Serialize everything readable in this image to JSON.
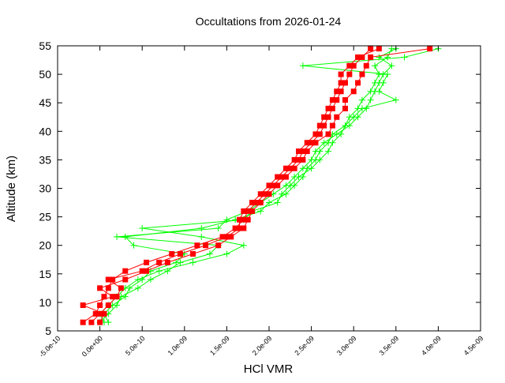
{
  "chart_data": {
    "type": "line",
    "title": "Occultations from 2026-01-24",
    "xlabel": "HCl VMR",
    "ylabel": "Altitude (km)",
    "xlim": [
      -5e-10,
      4.5e-09
    ],
    "ylim": [
      5,
      55
    ],
    "xticks": [
      "-5.0e-10",
      "0.0e+00",
      "5.0e-10",
      "1.0e-09",
      "1.5e-09",
      "2.0e-09",
      "2.5e-09",
      "3.0e-09",
      "3.5e-09",
      "4.0e-09",
      "4.5e-09"
    ],
    "xtick_values": [
      -5e-10,
      0,
      5e-10,
      1e-09,
      1.5e-09,
      2e-09,
      2.5e-09,
      3e-09,
      3.5e-09,
      4e-09,
      4.5e-09
    ],
    "yticks": [
      5,
      10,
      15,
      20,
      25,
      30,
      35,
      40,
      45,
      50,
      55
    ],
    "grid": false,
    "altitudes": [
      6.5,
      8,
      9.5,
      11,
      12.5,
      14,
      15.5,
      17,
      18.5,
      20,
      21.5,
      23,
      24.5,
      26,
      27.5,
      29,
      30.5,
      32,
      33.5,
      35,
      36.5,
      38,
      39.5,
      41,
      42.5,
      44,
      45.5,
      47,
      48.5,
      50,
      51.5,
      53,
      54.5
    ],
    "series": [
      {
        "color": "#00ff00",
        "marker": "plus",
        "values": [
          1e-10,
          5e-11,
          1.5e-10,
          3e-10,
          3.5e-10,
          5e-10,
          6e-10,
          9e-10,
          1e-09,
          4e-10,
          3e-10,
          1.2e-09,
          1.6e-09,
          1.9e-09,
          2e-09,
          2.2e-09,
          2.3e-09,
          2.4e-09,
          2.45e-09,
          2.55e-09,
          2.6e-09,
          2.7e-09,
          2.75e-09,
          2.9e-09,
          3e-09,
          3.1e-09,
          3.5e-09,
          3.3e-09,
          3.35e-09,
          3.4e-09,
          2.4e-09,
          3.6e-09,
          4e-09
        ]
      },
      {
        "color": "#00ff00",
        "marker": "plus",
        "values": [
          0.0,
          1e-10,
          2e-10,
          2.5e-10,
          4.5e-10,
          6e-10,
          8e-10,
          9.5e-10,
          1.3e-09,
          1.4e-09,
          2e-10,
          1.4e-09,
          1.5e-09,
          1.75e-09,
          1.9e-09,
          2.05e-09,
          2.2e-09,
          2.3e-09,
          2.4e-09,
          2.5e-09,
          2.55e-09,
          2.65e-09,
          2.8e-09,
          2.95e-09,
          3.05e-09,
          3.15e-09,
          3.2e-09,
          3.25e-09,
          3.3e-09,
          3.35e-09,
          3.45e-09,
          3.3e-09,
          3.5e-09
        ]
      },
      {
        "color": "#00ff00",
        "marker": "plus",
        "values": [
          5e-11,
          0.0,
          1e-10,
          2e-10,
          3e-10,
          4.5e-10,
          7e-10,
          1.1e-09,
          1.5e-09,
          1.7e-09,
          1.2e-09,
          5e-10,
          1.7e-09,
          1.8e-09,
          2.1e-09,
          2.15e-09,
          2.25e-09,
          2.35e-09,
          2.5e-09,
          2.6e-09,
          2.7e-09,
          2.75e-09,
          2.85e-09,
          2.9e-09,
          2.95e-09,
          3.05e-09,
          3.1e-09,
          3.2e-09,
          3.25e-09,
          3.3e-09,
          3.25e-09,
          3.4e-09,
          3.45e-09
        ]
      },
      {
        "color": "#ff0000",
        "marker": "square",
        "values": [
          -2e-10,
          -5e-11,
          0.0,
          5e-11,
          1e-10,
          1.5e-10,
          3e-10,
          5.5e-10,
          8.5e-10,
          1.15e-09,
          1.45e-09,
          1.6e-09,
          1.7e-09,
          1.75e-09,
          1.85e-09,
          1.95e-09,
          2.05e-09,
          2.15e-09,
          2.25e-09,
          2.35e-09,
          2.4e-09,
          2.5e-09,
          2.6e-09,
          2.65e-09,
          2.7e-09,
          2.75e-09,
          2.8e-09,
          2.85e-09,
          2.9e-09,
          2.95e-09,
          3e-09,
          3.1e-09,
          3.2e-09
        ]
      },
      {
        "color": "#ff0000",
        "marker": "square",
        "values": [
          0.0,
          5e-11,
          -2e-10,
          1.5e-10,
          0.0,
          3e-10,
          5.5e-10,
          8e-10,
          1.1e-09,
          1.4e-09,
          1.55e-09,
          1.7e-09,
          1.75e-09,
          1.8e-09,
          1.9e-09,
          2e-09,
          2.1e-09,
          2.2e-09,
          2.3e-09,
          2.4e-09,
          2.45e-09,
          2.55e-09,
          2.7e-09,
          2.75e-09,
          2.8e-09,
          2.9e-09,
          2.9e-09,
          3e-09,
          3.05e-09,
          3.1e-09,
          3.15e-09,
          3.2e-09,
          3.9e-09
        ]
      },
      {
        "color": "#ff0000",
        "marker": "square",
        "values": [
          -1e-10,
          0.0,
          1e-10,
          2e-10,
          2.5e-10,
          1e-10,
          5e-10,
          7e-10,
          9.5e-10,
          1.25e-09,
          1.5e-09,
          1.65e-09,
          1.65e-09,
          1.7e-09,
          1.8e-09,
          1.9e-09,
          2e-09,
          2.1e-09,
          2.2e-09,
          2.3e-09,
          2.35e-09,
          2.45e-09,
          2.55e-09,
          2.6e-09,
          2.65e-09,
          2.7e-09,
          2.75e-09,
          2.8e-09,
          2.85e-09,
          2.85e-09,
          2.95e-09,
          3.05e-09,
          3.3e-09
        ]
      }
    ]
  }
}
